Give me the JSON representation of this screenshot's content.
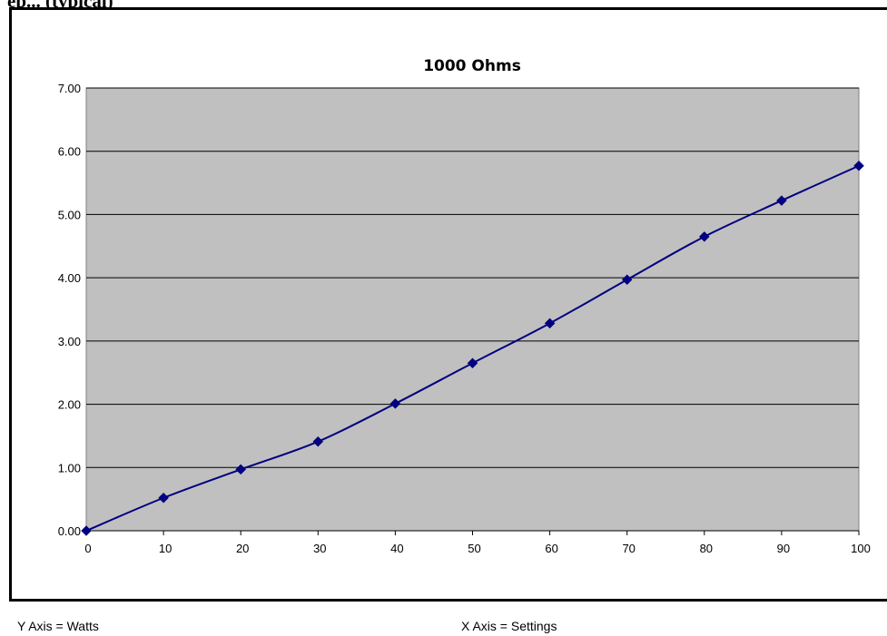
{
  "heading": "ep... (typical)",
  "footer": {
    "y_axis_note": "Y Axis = Watts",
    "x_axis_note": "X Axis = Settings"
  },
  "chart_data": {
    "type": "line",
    "title": "1000 Ohms",
    "xlabel": "",
    "ylabel": "",
    "x": [
      0,
      10,
      20,
      30,
      40,
      50,
      60,
      70,
      80,
      90,
      100
    ],
    "series": [
      {
        "values": [
          0.0,
          0.52,
          0.97,
          1.41,
          2.01,
          2.65,
          3.28,
          3.97,
          4.65,
          5.22,
          5.77
        ]
      }
    ],
    "xlim": [
      0,
      100
    ],
    "ylim": [
      0,
      7
    ],
    "x_ticks": [
      "0",
      "10",
      "20",
      "30",
      "40",
      "50",
      "60",
      "70",
      "80",
      "90",
      "100"
    ],
    "y_ticks": [
      "0.00",
      "1.00",
      "2.00",
      "3.00",
      "4.00",
      "5.00",
      "6.00",
      "7.00"
    ],
    "grid": true,
    "legend": "none",
    "marker": "diamond",
    "colors": {
      "line": "#000080",
      "plot_background": "#c0c0c0",
      "grid": "#000000"
    }
  }
}
